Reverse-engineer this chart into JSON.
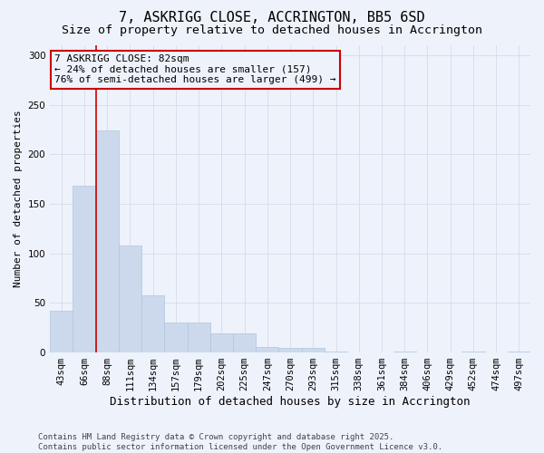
{
  "title": "7, ASKRIGG CLOSE, ACCRINGTON, BB5 6SD",
  "subtitle": "Size of property relative to detached houses in Accrington",
  "xlabel": "Distribution of detached houses by size in Accrington",
  "ylabel": "Number of detached properties",
  "categories": [
    "43sqm",
    "66sqm",
    "88sqm",
    "111sqm",
    "134sqm",
    "157sqm",
    "179sqm",
    "202sqm",
    "225sqm",
    "247sqm",
    "270sqm",
    "293sqm",
    "315sqm",
    "338sqm",
    "361sqm",
    "384sqm",
    "406sqm",
    "429sqm",
    "452sqm",
    "474sqm",
    "497sqm"
  ],
  "values": [
    42,
    168,
    224,
    108,
    58,
    30,
    30,
    19,
    19,
    6,
    5,
    5,
    1,
    0,
    0,
    1,
    0,
    0,
    1,
    0,
    1
  ],
  "bar_color": "#ccd9ec",
  "bar_edge_color": "#b0c4de",
  "background_color": "#eef2fb",
  "grid_color": "#d5dce8",
  "vline_color": "#cc0000",
  "annotation_line1": "7 ASKRIGG CLOSE: 82sqm",
  "annotation_line2": "← 24% of detached houses are smaller (157)",
  "annotation_line3": "76% of semi-detached houses are larger (499) →",
  "annotation_box_color": "#cc0000",
  "footer_line1": "Contains HM Land Registry data © Crown copyright and database right 2025.",
  "footer_line2": "Contains public sector information licensed under the Open Government Licence v3.0.",
  "ylim": [
    0,
    310
  ],
  "yticks": [
    0,
    50,
    100,
    150,
    200,
    250,
    300
  ],
  "title_fontsize": 11,
  "subtitle_fontsize": 9.5,
  "xlabel_fontsize": 9,
  "ylabel_fontsize": 8,
  "tick_fontsize": 7.5,
  "annotation_fontsize": 8,
  "footer_fontsize": 6.5,
  "vline_bar_index": 1.5
}
